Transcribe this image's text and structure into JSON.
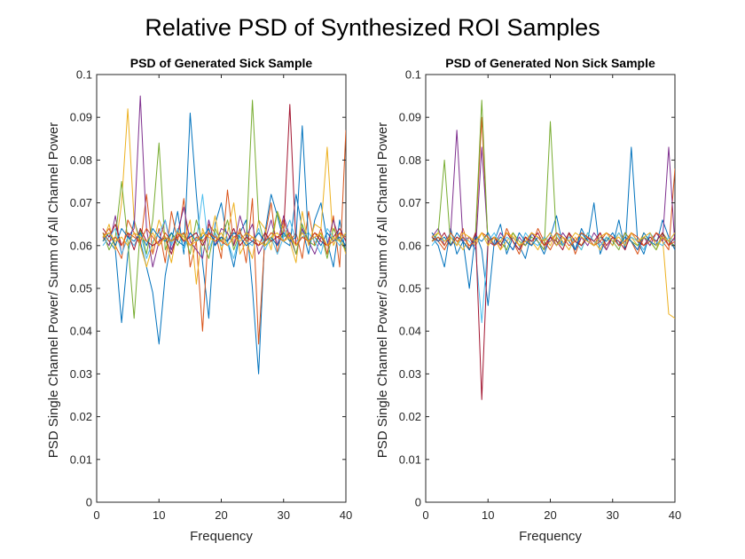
{
  "figure": {
    "title": "Relative PSD of Synthesized ROI Samples"
  },
  "chart_data": [
    {
      "type": "line",
      "title": "PSD of Generated Sick Sample",
      "xlabel": "Frequency",
      "ylabel": "PSD Single Channel Power/ Summ of All Channel Power",
      "xlim": [
        0,
        40
      ],
      "ylim": [
        0,
        0.1
      ],
      "xticks": [
        "0",
        "10",
        "20",
        "30",
        "40"
      ],
      "yticks": [
        "0",
        "0.01",
        "0.02",
        "0.03",
        "0.04",
        "0.05",
        "0.06",
        "0.07",
        "0.08",
        "0.09",
        "0.1"
      ],
      "grid": false,
      "x": [
        1,
        2,
        3,
        4,
        5,
        6,
        7,
        8,
        9,
        10,
        11,
        12,
        13,
        14,
        15,
        16,
        17,
        18,
        19,
        20,
        21,
        22,
        23,
        24,
        25,
        26,
        27,
        28,
        29,
        30,
        31,
        32,
        33,
        34,
        35,
        36,
        37,
        38,
        39,
        40
      ],
      "series": [
        {
          "color": "#0072BD",
          "values": [
            0.063,
            0.061,
            0.059,
            0.042,
            0.058,
            0.066,
            0.061,
            0.055,
            0.049,
            0.037,
            0.053,
            0.061,
            0.068,
            0.058,
            0.091,
            0.072,
            0.056,
            0.043,
            0.065,
            0.07,
            0.061,
            0.055,
            0.063,
            0.066,
            0.05,
            0.03,
            0.063,
            0.072,
            0.067,
            0.061,
            0.06,
            0.072,
            0.064,
            0.058,
            0.066,
            0.07,
            0.061,
            0.055,
            0.066,
            0.058
          ]
        },
        {
          "color": "#D95319",
          "values": [
            0.062,
            0.064,
            0.06,
            0.057,
            0.066,
            0.063,
            0.06,
            0.072,
            0.058,
            0.064,
            0.056,
            0.068,
            0.061,
            0.071,
            0.055,
            0.061,
            0.04,
            0.065,
            0.063,
            0.057,
            0.073,
            0.06,
            0.064,
            0.056,
            0.071,
            0.037,
            0.062,
            0.07,
            0.058,
            0.066,
            0.061,
            0.063,
            0.057,
            0.068,
            0.06,
            0.064,
            0.058,
            0.067,
            0.055,
            0.087
          ]
        },
        {
          "color": "#EDB120",
          "values": [
            0.061,
            0.065,
            0.059,
            0.07,
            0.092,
            0.066,
            0.06,
            0.055,
            0.06,
            0.066,
            0.062,
            0.056,
            0.064,
            0.061,
            0.066,
            0.051,
            0.064,
            0.06,
            0.067,
            0.059,
            0.063,
            0.07,
            0.058,
            0.061,
            0.057,
            0.066,
            0.064,
            0.059,
            0.068,
            0.064,
            0.061,
            0.056,
            0.068,
            0.06,
            0.065,
            0.064,
            0.083,
            0.06,
            0.063,
            0.058
          ]
        },
        {
          "color": "#7E2F8E",
          "values": [
            0.062,
            0.06,
            0.067,
            0.058,
            0.062,
            0.064,
            0.095,
            0.064,
            0.055,
            0.061,
            0.066,
            0.059,
            0.063,
            0.069,
            0.061,
            0.059,
            0.057,
            0.066,
            0.06,
            0.064,
            0.063,
            0.06,
            0.067,
            0.062,
            0.065,
            0.058,
            0.061,
            0.066,
            0.06,
            0.067,
            0.062,
            0.058,
            0.064,
            0.061,
            0.058,
            0.062,
            0.06,
            0.066,
            0.061,
            0.063
          ]
        },
        {
          "color": "#77AC30",
          "values": [
            0.063,
            0.059,
            0.062,
            0.075,
            0.061,
            0.043,
            0.064,
            0.058,
            0.066,
            0.084,
            0.059,
            0.063,
            0.06,
            0.063,
            0.058,
            0.066,
            0.061,
            0.057,
            0.064,
            0.061,
            0.066,
            0.059,
            0.063,
            0.061,
            0.094,
            0.066,
            0.06,
            0.061,
            0.068,
            0.062,
            0.063,
            0.058,
            0.065,
            0.061,
            0.06,
            0.063,
            0.057,
            0.064,
            0.061,
            0.059
          ]
        },
        {
          "color": "#4DBEEE",
          "values": [
            0.06,
            0.062,
            0.064,
            0.058,
            0.062,
            0.06,
            0.063,
            0.057,
            0.061,
            0.063,
            0.066,
            0.06,
            0.064,
            0.059,
            0.063,
            0.061,
            0.072,
            0.059,
            0.063,
            0.06,
            0.061,
            0.057,
            0.063,
            0.061,
            0.06,
            0.064,
            0.059,
            0.062,
            0.058,
            0.062,
            0.066,
            0.061,
            0.062,
            0.063,
            0.061,
            0.058,
            0.064,
            0.062,
            0.06,
            0.063
          ]
        },
        {
          "color": "#A2142F",
          "values": [
            0.064,
            0.062,
            0.065,
            0.06,
            0.063,
            0.059,
            0.064,
            0.061,
            0.06,
            0.061,
            0.062,
            0.058,
            0.063,
            0.061,
            0.062,
            0.063,
            0.06,
            0.063,
            0.061,
            0.062,
            0.061,
            0.064,
            0.06,
            0.062,
            0.061,
            0.06,
            0.063,
            0.061,
            0.062,
            0.063,
            0.093,
            0.06,
            0.062,
            0.061,
            0.063,
            0.061,
            0.06,
            0.062,
            0.064,
            0.061
          ]
        },
        {
          "color": "#0072BD",
          "values": [
            0.061,
            0.063,
            0.06,
            0.064,
            0.062,
            0.061,
            0.063,
            0.06,
            0.064,
            0.062,
            0.061,
            0.063,
            0.061,
            0.06,
            0.063,
            0.061,
            0.062,
            0.064,
            0.06,
            0.062,
            0.061,
            0.063,
            0.062,
            0.06,
            0.061,
            0.063,
            0.061,
            0.062,
            0.06,
            0.063,
            0.061,
            0.062,
            0.088,
            0.061,
            0.062,
            0.06,
            0.063,
            0.061,
            0.062,
            0.06
          ]
        },
        {
          "color": "#D95319",
          "values": [
            0.063,
            0.061,
            0.062,
            0.06,
            0.063,
            0.062,
            0.061,
            0.064,
            0.062,
            0.06,
            0.063,
            0.061,
            0.062,
            0.063,
            0.06,
            0.062,
            0.061,
            0.063,
            0.062,
            0.061,
            0.06,
            0.062,
            0.063,
            0.061,
            0.062,
            0.06,
            0.061,
            0.063,
            0.062,
            0.061,
            0.063,
            0.06,
            0.062,
            0.061,
            0.063,
            0.062,
            0.06,
            0.061,
            0.063,
            0.062
          ]
        },
        {
          "color": "#EDB120",
          "values": [
            0.062,
            0.063,
            0.061,
            0.062,
            0.06,
            0.063,
            0.062,
            0.061,
            0.063,
            0.06,
            0.062,
            0.061,
            0.063,
            0.062,
            0.06,
            0.061,
            0.063,
            0.062,
            0.061,
            0.063,
            0.06,
            0.062,
            0.061,
            0.063,
            0.062,
            0.061,
            0.06,
            0.062,
            0.063,
            0.061,
            0.062,
            0.06,
            0.063,
            0.061,
            0.062,
            0.063,
            0.06,
            0.062,
            0.061,
            0.063
          ]
        }
      ]
    },
    {
      "type": "line",
      "title": "PSD of Generated Non Sick Sample",
      "xlabel": "Frequency",
      "ylabel": "PSD Single Channel Power/ Summ of All Channel Power",
      "xlim": [
        0,
        40
      ],
      "ylim": [
        0,
        0.1
      ],
      "xticks": [
        "0",
        "10",
        "20",
        "30",
        "40"
      ],
      "yticks": [
        "0",
        "0.01",
        "0.02",
        "0.03",
        "0.04",
        "0.05",
        "0.06",
        "0.07",
        "0.08",
        "0.09",
        "0.1"
      ],
      "grid": false,
      "x": [
        1,
        2,
        3,
        4,
        5,
        6,
        7,
        8,
        9,
        10,
        11,
        12,
        13,
        14,
        15,
        16,
        17,
        18,
        19,
        20,
        21,
        22,
        23,
        24,
        25,
        26,
        27,
        28,
        29,
        30,
        31,
        32,
        33,
        34,
        35,
        36,
        37,
        38,
        39,
        40
      ],
      "series": [
        {
          "color": "#0072BD",
          "values": [
            0.062,
            0.06,
            0.055,
            0.064,
            0.058,
            0.061,
            0.05,
            0.063,
            0.059,
            0.046,
            0.061,
            0.065,
            0.058,
            0.062,
            0.06,
            0.057,
            0.063,
            0.061,
            0.058,
            0.062,
            0.067,
            0.06,
            0.063,
            0.059,
            0.064,
            0.061,
            0.07,
            0.058,
            0.062,
            0.06,
            0.066,
            0.059,
            0.083,
            0.061,
            0.058,
            0.063,
            0.06,
            0.066,
            0.062,
            0.059
          ]
        },
        {
          "color": "#D95319",
          "values": [
            0.063,
            0.061,
            0.059,
            0.062,
            0.06,
            0.064,
            0.059,
            0.062,
            0.09,
            0.06,
            0.062,
            0.059,
            0.064,
            0.061,
            0.058,
            0.062,
            0.06,
            0.064,
            0.061,
            0.059,
            0.062,
            0.06,
            0.063,
            0.058,
            0.062,
            0.061,
            0.06,
            0.063,
            0.059,
            0.062,
            0.06,
            0.063,
            0.061,
            0.058,
            0.062,
            0.06,
            0.063,
            0.061,
            0.059,
            0.078
          ]
        },
        {
          "color": "#EDB120",
          "values": [
            0.061,
            0.062,
            0.06,
            0.063,
            0.061,
            0.059,
            0.062,
            0.06,
            0.063,
            0.061,
            0.062,
            0.059,
            0.061,
            0.063,
            0.06,
            0.062,
            0.061,
            0.059,
            0.062,
            0.06,
            0.063,
            0.061,
            0.059,
            0.062,
            0.06,
            0.063,
            0.061,
            0.059,
            0.062,
            0.06,
            0.063,
            0.061,
            0.062,
            0.06,
            0.063,
            0.061,
            0.059,
            0.062,
            0.044,
            0.043
          ]
        },
        {
          "color": "#7E2F8E",
          "values": [
            0.062,
            0.064,
            0.06,
            0.063,
            0.087,
            0.061,
            0.062,
            0.059,
            0.083,
            0.061,
            0.06,
            0.063,
            0.061,
            0.059,
            0.062,
            0.06,
            0.063,
            0.061,
            0.059,
            0.062,
            0.06,
            0.063,
            0.061,
            0.059,
            0.062,
            0.06,
            0.063,
            0.061,
            0.059,
            0.062,
            0.06,
            0.063,
            0.061,
            0.059,
            0.062,
            0.06,
            0.063,
            0.061,
            0.083,
            0.06
          ]
        },
        {
          "color": "#77AC30",
          "values": [
            0.061,
            0.063,
            0.08,
            0.06,
            0.062,
            0.061,
            0.059,
            0.063,
            0.094,
            0.06,
            0.062,
            0.061,
            0.059,
            0.063,
            0.061,
            0.06,
            0.062,
            0.061,
            0.059,
            0.089,
            0.061,
            0.06,
            0.062,
            0.061,
            0.059,
            0.063,
            0.061,
            0.06,
            0.062,
            0.061,
            0.059,
            0.063,
            0.061,
            0.06,
            0.062,
            0.061,
            0.059,
            0.063,
            0.061,
            0.06
          ]
        },
        {
          "color": "#4DBEEE",
          "values": [
            0.06,
            0.062,
            0.061,
            0.063,
            0.06,
            0.062,
            0.061,
            0.059,
            0.042,
            0.061,
            0.063,
            0.06,
            0.062,
            0.061,
            0.059,
            0.063,
            0.061,
            0.06,
            0.062,
            0.061,
            0.063,
            0.06,
            0.062,
            0.061,
            0.059,
            0.063,
            0.061,
            0.06,
            0.062,
            0.061,
            0.063,
            0.06,
            0.062,
            0.061,
            0.059,
            0.063,
            0.061,
            0.06,
            0.062,
            0.061
          ]
        },
        {
          "color": "#A2142F",
          "values": [
            0.062,
            0.061,
            0.063,
            0.06,
            0.062,
            0.061,
            0.059,
            0.063,
            0.024,
            0.061,
            0.062,
            0.06,
            0.063,
            0.061,
            0.059,
            0.062,
            0.061,
            0.063,
            0.06,
            0.062,
            0.061,
            0.059,
            0.063,
            0.061,
            0.06,
            0.062,
            0.061,
            0.063,
            0.06,
            0.062,
            0.061,
            0.059,
            0.063,
            0.061,
            0.06,
            0.062,
            0.061,
            0.063,
            0.06,
            0.062
          ]
        },
        {
          "color": "#0072BD",
          "values": [
            0.063,
            0.061,
            0.062,
            0.06,
            0.063,
            0.061,
            0.059,
            0.062,
            0.061,
            0.063,
            0.06,
            0.062,
            0.061,
            0.059,
            0.063,
            0.061,
            0.06,
            0.062,
            0.061,
            0.063,
            0.06,
            0.062,
            0.061,
            0.059,
            0.063,
            0.061,
            0.06,
            0.062,
            0.061,
            0.063,
            0.06,
            0.062,
            0.061,
            0.059,
            0.063,
            0.061,
            0.06,
            0.062,
            0.061,
            0.063
          ]
        },
        {
          "color": "#D95319",
          "values": [
            0.061,
            0.062,
            0.06,
            0.063,
            0.061,
            0.062,
            0.06,
            0.061,
            0.063,
            0.062,
            0.06,
            0.061,
            0.063,
            0.062,
            0.06,
            0.061,
            0.063,
            0.062,
            0.06,
            0.061,
            0.063,
            0.062,
            0.06,
            0.061,
            0.063,
            0.062,
            0.06,
            0.061,
            0.063,
            0.062,
            0.06,
            0.061,
            0.063,
            0.062,
            0.06,
            0.061,
            0.063,
            0.062,
            0.06,
            0.061
          ]
        },
        {
          "color": "#EDB120",
          "values": [
            0.062,
            0.063,
            0.061,
            0.062,
            0.06,
            0.063,
            0.062,
            0.061,
            0.063,
            0.06,
            0.062,
            0.061,
            0.063,
            0.062,
            0.06,
            0.061,
            0.063,
            0.062,
            0.061,
            0.063,
            0.06,
            0.062,
            0.061,
            0.063,
            0.062,
            0.061,
            0.06,
            0.062,
            0.063,
            0.061,
            0.062,
            0.06,
            0.063,
            0.061,
            0.062,
            0.063,
            0.06,
            0.062,
            0.061,
            0.063
          ]
        }
      ]
    }
  ]
}
